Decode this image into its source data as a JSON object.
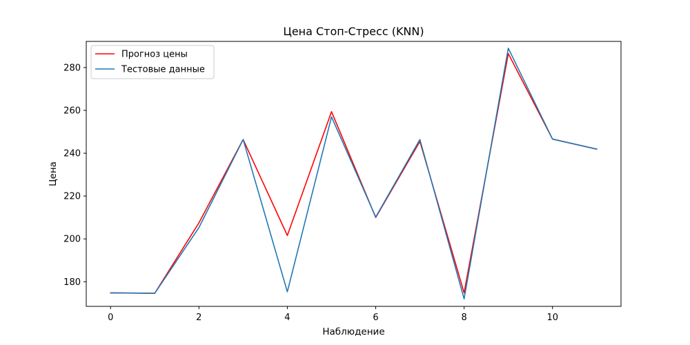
{
  "chart_data": {
    "type": "line",
    "title": "Цена Стоп-Стресс (KNN)",
    "xlabel": "Наблюдение",
    "ylabel": "Цена",
    "x": [
      0,
      1,
      2,
      3,
      4,
      5,
      6,
      7,
      8,
      9,
      10,
      11
    ],
    "xlim": [
      -0.55,
      11.55
    ],
    "ylim": [
      168.5,
      292.2
    ],
    "xticks": [
      0,
      2,
      4,
      6,
      8,
      10
    ],
    "yticks": [
      180,
      200,
      220,
      240,
      260,
      280
    ],
    "grid": false,
    "legend_position": "upper left",
    "series": [
      {
        "name": "Прогноз цены",
        "color": "#ff0000",
        "values": [
          174.8,
          174.6,
          207.5,
          246.4,
          201.6,
          259.4,
          210.0,
          245.5,
          174.8,
          286.5,
          246.6,
          241.9
        ]
      },
      {
        "name": "Тестовые данные",
        "color": "#1f77b4",
        "values": [
          174.8,
          174.6,
          205.3,
          246.4,
          175.3,
          257.0,
          210.2,
          246.4,
          172.0,
          289.0,
          246.6,
          241.9
        ]
      }
    ]
  }
}
